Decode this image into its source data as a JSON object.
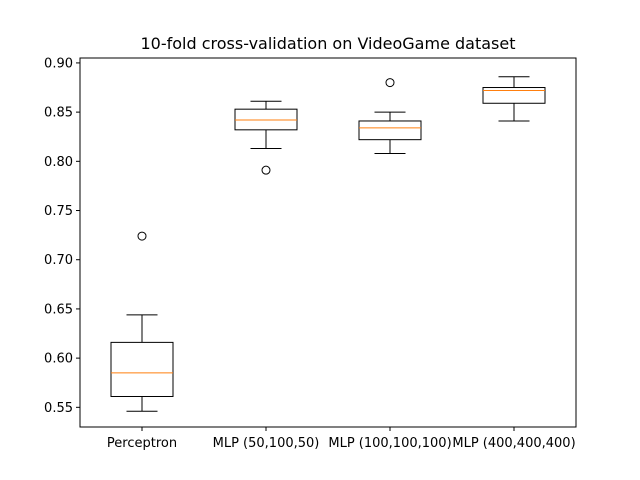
{
  "chart_data": {
    "type": "box",
    "title": "10-fold cross-validation on VideoGame dataset",
    "xlabel": "",
    "ylabel": "",
    "ylim": [
      0.53,
      0.905
    ],
    "yticks": [
      0.55,
      0.6,
      0.65,
      0.7,
      0.75,
      0.8,
      0.85,
      0.9
    ],
    "ytick_labels": [
      "0.55",
      "0.60",
      "0.65",
      "0.70",
      "0.75",
      "0.80",
      "0.85",
      "0.90"
    ],
    "grid": false,
    "categories": [
      "Perceptron",
      "MLP (50,100,50)",
      "MLP (100,100,100)",
      "MLP (400,400,400)"
    ],
    "boxes": [
      {
        "whisker_low": 0.546,
        "q1": 0.561,
        "median": 0.585,
        "q3": 0.616,
        "whisker_high": 0.644,
        "outliers": [
          0.724
        ]
      },
      {
        "whisker_low": 0.813,
        "q1": 0.832,
        "median": 0.842,
        "q3": 0.853,
        "whisker_high": 0.861,
        "outliers": [
          0.791
        ]
      },
      {
        "whisker_low": 0.808,
        "q1": 0.822,
        "median": 0.834,
        "q3": 0.841,
        "whisker_high": 0.85,
        "outliers": [
          0.88
        ]
      },
      {
        "whisker_low": 0.841,
        "q1": 0.859,
        "median": 0.872,
        "q3": 0.875,
        "whisker_high": 0.886,
        "outliers": []
      }
    ],
    "colors": {
      "box": "#000000",
      "median": "#ff7f0e",
      "outlier": "#000000"
    }
  }
}
